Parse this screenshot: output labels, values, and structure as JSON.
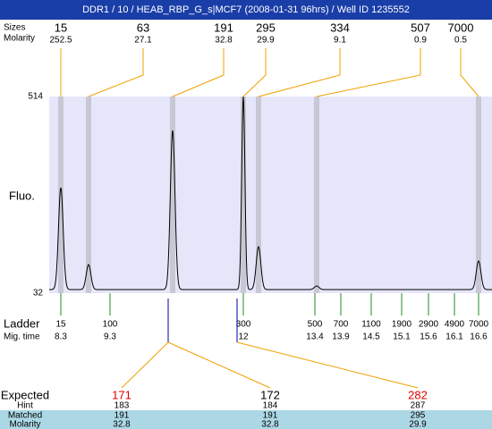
{
  "header": {
    "title": "DDR1 / 10 / HEAB_RBP_G_s|MCF7 (2008-01-31 96hrs) / Well ID 1235552"
  },
  "peaks": {
    "size_label": "Sizes",
    "molarity_label": "Molarity",
    "sizes": [
      15,
      63,
      191,
      295,
      334,
      507,
      7000
    ],
    "molarity": [
      252.5,
      27.1,
      32.8,
      29.9,
      9.1,
      0.9,
      0.5
    ]
  },
  "plot": {
    "y_label": "Fluo.",
    "yticks": [
      514,
      32
    ]
  },
  "ladder": {
    "label": "Ladder",
    "mig_label": "Mig. time",
    "sizes": [
      15,
      100,
      300,
      500,
      700,
      1100,
      1900,
      2900,
      4900,
      7000
    ],
    "mig_times": [
      8.3,
      9.3,
      12,
      13.4,
      13.9,
      14.5,
      15.1,
      15.6,
      16.1,
      16.6
    ]
  },
  "table": {
    "labels": [
      "Expected",
      "Hint",
      "Matched",
      "Molarity"
    ],
    "expected": [
      171,
      172,
      282
    ],
    "hint": [
      183,
      184,
      287
    ],
    "matched": [
      191,
      191,
      295
    ],
    "molarity": [
      32.8,
      32.8,
      29.9
    ]
  }
}
